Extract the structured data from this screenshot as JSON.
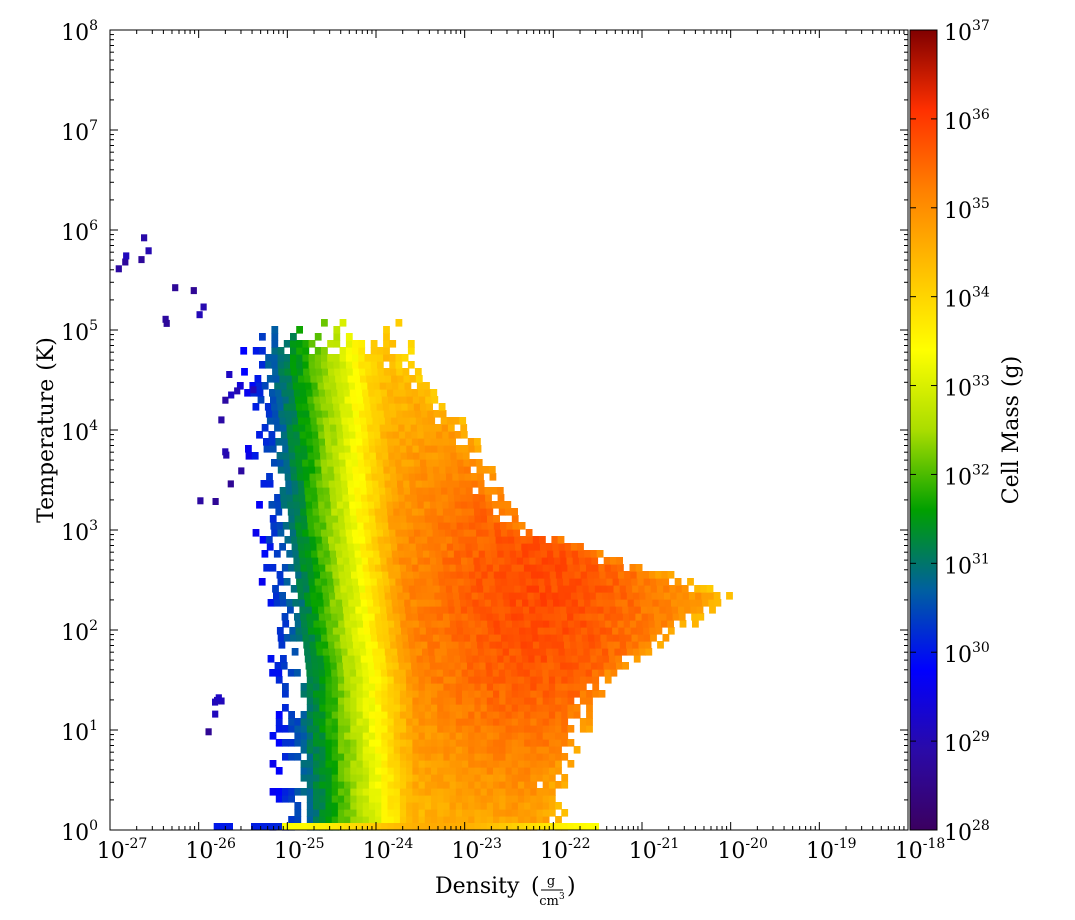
{
  "chart_data": {
    "type": "heatmap",
    "xlabel": "Density",
    "xlabel_unit": {
      "numerator": "g",
      "denominator": "cm",
      "denominator_exp": "3"
    },
    "ylabel": "Temperature",
    "ylabel_unit": "(K)",
    "colorbar_label": "Cell Mass",
    "colorbar_unit": "(g)",
    "x_scale": "log",
    "y_scale": "log",
    "xlim": [
      1e-27,
      1e-18
    ],
    "ylim": [
      1,
      100000000.0
    ],
    "clim": [
      1e+28,
      1e+37
    ],
    "x_ticks": [
      {
        "base": "10",
        "exp": "-27"
      },
      {
        "base": "10",
        "exp": "-26"
      },
      {
        "base": "10",
        "exp": "-25"
      },
      {
        "base": "10",
        "exp": "-24"
      },
      {
        "base": "10",
        "exp": "-23"
      },
      {
        "base": "10",
        "exp": "-22"
      },
      {
        "base": "10",
        "exp": "-21"
      },
      {
        "base": "10",
        "exp": "-20"
      },
      {
        "base": "10",
        "exp": "-19"
      },
      {
        "base": "10",
        "exp": "-18"
      }
    ],
    "y_ticks": [
      {
        "base": "10",
        "exp": "0"
      },
      {
        "base": "10",
        "exp": "1"
      },
      {
        "base": "10",
        "exp": "2"
      },
      {
        "base": "10",
        "exp": "3"
      },
      {
        "base": "10",
        "exp": "4"
      },
      {
        "base": "10",
        "exp": "5"
      },
      {
        "base": "10",
        "exp": "6"
      },
      {
        "base": "10",
        "exp": "7"
      },
      {
        "base": "10",
        "exp": "8"
      }
    ],
    "c_ticks": [
      {
        "base": "10",
        "exp": "28"
      },
      {
        "base": "10",
        "exp": "29"
      },
      {
        "base": "10",
        "exp": "30"
      },
      {
        "base": "10",
        "exp": "31"
      },
      {
        "base": "10",
        "exp": "32"
      },
      {
        "base": "10",
        "exp": "33"
      },
      {
        "base": "10",
        "exp": "34"
      },
      {
        "base": "10",
        "exp": "35"
      },
      {
        "base": "10",
        "exp": "36"
      },
      {
        "base": "10",
        "exp": "37"
      }
    ],
    "colormap": [
      "#3b0060",
      "#2a0aa8",
      "#0000ff",
      "#0060a0",
      "#00a000",
      "#aadd00",
      "#ffff00",
      "#ffc000",
      "#ff8000",
      "#ff3000",
      "#800000"
    ],
    "distribution": {
      "description_units": "log10 density, log10 temperature, log10 cell mass",
      "core_peak": {
        "log_density": -22.2,
        "log_temperature": 2.3,
        "log_mass": 36.0
      },
      "ridge": [
        {
          "log_temperature": 4.6,
          "log_density_min": -25.2,
          "log_density_max": -23.6
        },
        {
          "log_temperature": 4.0,
          "log_density_min": -25.1,
          "log_density_max": -23.0
        },
        {
          "log_temperature": 3.0,
          "log_density_min": -25.0,
          "log_density_max": -22.4
        },
        {
          "log_temperature": 2.3,
          "log_density_min": -24.9,
          "log_density_max": -20.0
        },
        {
          "log_temperature": 1.5,
          "log_density_min": -24.8,
          "log_density_max": -21.4
        },
        {
          "log_temperature": 0.5,
          "log_density_min": -24.8,
          "log_density_max": -21.9
        }
      ],
      "low_density_tail": [
        {
          "log_density": -26.8,
          "log_temperature": 5.8
        },
        {
          "log_density": -26.2,
          "log_temperature": 5.2
        },
        {
          "log_density": -25.6,
          "log_temperature": 4.3
        },
        {
          "log_density": -25.8,
          "log_temperature": 3.5
        },
        {
          "log_density": -25.9,
          "log_temperature": 1.1
        }
      ]
    }
  }
}
